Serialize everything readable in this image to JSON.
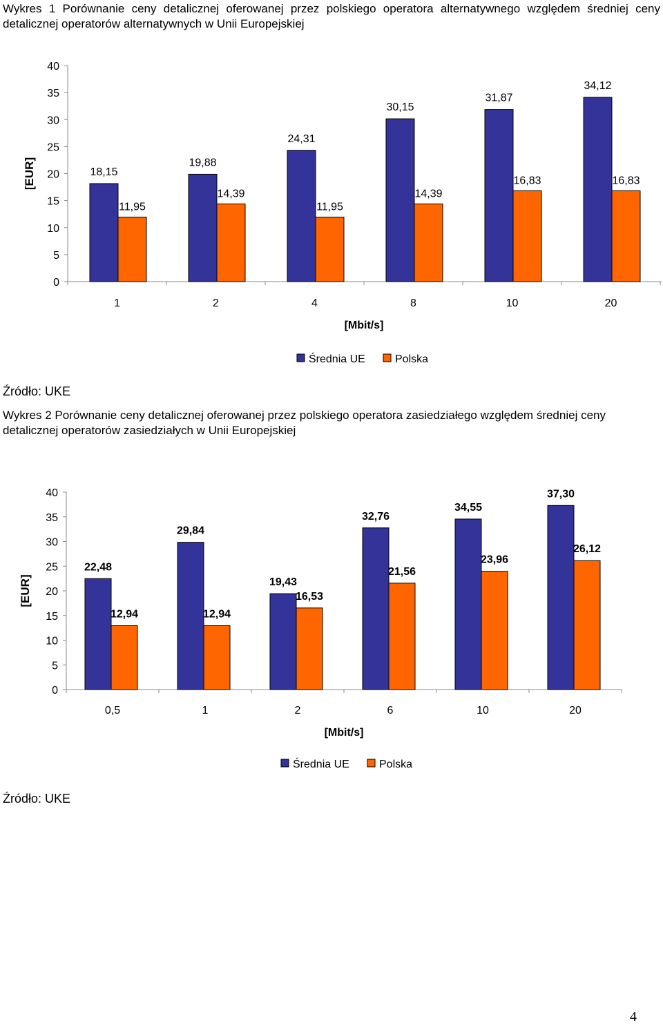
{
  "charts": [
    {
      "caption": "Wykres 1 Porównanie ceny detalicznej oferowanej przez polskiego operatora alternatywnego względem średniej ceny detalicznej operatorów alternatywnych w Unii Europejskiej",
      "source": "Źródło: UKE"
    },
    {
      "caption": "Wykres 2 Porównanie ceny detalicznej oferowanej przez polskiego operatora zasiedziałego względem średniej ceny detalicznej operatorów zasiedziałych w Unii Europejskiej",
      "source": "Źródło: UKE"
    }
  ],
  "page_number": "4",
  "colors": {
    "series_eu": "#333399",
    "series_pl": "#ff6600"
  },
  "chart_data": [
    {
      "type": "bar",
      "title": "",
      "xlabel": "[Mbit/s]",
      "ylabel": "[EUR]",
      "ylim": [
        0,
        40
      ],
      "yticks": [
        "0",
        "5",
        "10",
        "15",
        "20",
        "25",
        "30",
        "35",
        "40"
      ],
      "categories": [
        "1",
        "2",
        "4",
        "8",
        "10",
        "20"
      ],
      "legend_position": "bottom-center",
      "label_style": "normal",
      "series": [
        {
          "name": "Średnia UE",
          "values": [
            18.15,
            19.88,
            24.31,
            30.15,
            31.87,
            34.12
          ],
          "labels": [
            "18,15",
            "19,88",
            "24,31",
            "30,15",
            "31,87",
            "34,12"
          ]
        },
        {
          "name": "Polska",
          "values": [
            11.95,
            14.39,
            11.95,
            14.39,
            16.83,
            16.83
          ],
          "labels": [
            "11,95",
            "14,39",
            "11,95",
            "14,39",
            "16,83",
            "16,83"
          ]
        }
      ]
    },
    {
      "type": "bar",
      "title": "",
      "xlabel": "[Mbit/s]",
      "ylabel": "[EUR]",
      "ylim": [
        0,
        40
      ],
      "yticks": [
        "0",
        "5",
        "10",
        "15",
        "20",
        "25",
        "30",
        "35",
        "40"
      ],
      "categories": [
        "0,5",
        "1",
        "2",
        "6",
        "10",
        "20"
      ],
      "legend_position": "bottom-center",
      "label_style": "bold",
      "series": [
        {
          "name": "Średnia UE",
          "values": [
            22.48,
            29.84,
            19.43,
            32.76,
            34.55,
            37.3
          ],
          "labels": [
            "22,48",
            "29,84",
            "19,43",
            "32,76",
            "34,55",
            "37,30"
          ]
        },
        {
          "name": "Polska",
          "values": [
            12.94,
            12.94,
            16.53,
            21.56,
            23.96,
            26.12
          ],
          "labels": [
            "12,94",
            "12,94",
            "16,53",
            "21,56",
            "23,96",
            "26,12"
          ]
        }
      ]
    }
  ]
}
